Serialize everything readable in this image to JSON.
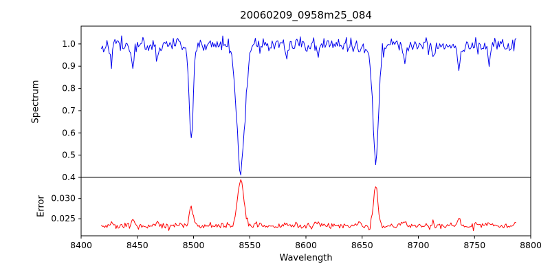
{
  "chart_data": {
    "type": "line",
    "title": "20060209_0958m25_084",
    "xlabel": "Wavelength",
    "x_range": [
      8400,
      8800
    ],
    "x_ticks": [
      8400,
      8450,
      8500,
      8550,
      8600,
      8650,
      8700,
      8750,
      8800
    ],
    "x_tick_labels": [
      "8400",
      "8450",
      "8500",
      "8550",
      "8600",
      "8650",
      "8700",
      "8750",
      "8800"
    ],
    "sampling": {
      "start": 8418,
      "end": 8787,
      "step": 1,
      "seed": 42
    },
    "panels": [
      {
        "name": "spectrum",
        "ylabel": "Spectrum",
        "ylim": [
          0.4,
          1.08
        ],
        "y_ticks": [
          0.4,
          0.5,
          0.6,
          0.7,
          0.8,
          0.9,
          1.0
        ],
        "y_tick_labels": [
          "0.4",
          "0.5",
          "0.6",
          "0.7",
          "0.8",
          "0.9",
          "1.0"
        ],
        "color": "#0000ee",
        "series": {
          "continuum": 0.995,
          "noise_sigma": 0.017,
          "absorption_lines": [
            {
              "center": 8498.0,
              "depth": 0.42,
              "sigma": 1.8
            },
            {
              "center": 8542.1,
              "depth": 0.57,
              "sigma": 3.6
            },
            {
              "center": 8662.1,
              "depth": 0.5,
              "sigma": 2.6
            }
          ],
          "weak_lines": [
            {
              "center": 8427,
              "depth": 0.05,
              "sigma": 1.0
            },
            {
              "center": 8446,
              "depth": 0.1,
              "sigma": 1.3
            },
            {
              "center": 8468,
              "depth": 0.06,
              "sigma": 1.0
            },
            {
              "center": 8583,
              "depth": 0.06,
              "sigma": 1.2
            },
            {
              "center": 8611,
              "depth": 0.05,
              "sigma": 1.0
            },
            {
              "center": 8648,
              "depth": 0.05,
              "sigma": 1.0
            },
            {
              "center": 8688,
              "depth": 0.09,
              "sigma": 1.2
            },
            {
              "center": 8713,
              "depth": 0.06,
              "sigma": 1.0
            },
            {
              "center": 8736,
              "depth": 0.1,
              "sigma": 1.2
            },
            {
              "center": 8763,
              "depth": 0.08,
              "sigma": 1.0
            }
          ]
        }
      },
      {
        "name": "error",
        "ylabel": "Error",
        "ylim": [
          0.0208,
          0.0352
        ],
        "y_ticks": [
          0.025,
          0.03
        ],
        "y_tick_labels": [
          "0.025",
          "0.030"
        ],
        "color": "#ff0000",
        "series": {
          "baseline": 0.0233,
          "noise_sigma": 0.0004,
          "weak_peak_factor": 0.015,
          "peaks": [
            {
              "center": 8498.0,
              "height": 0.0045,
              "sigma": 1.6
            },
            {
              "center": 8542.1,
              "height": 0.0112,
              "sigma": 2.8
            },
            {
              "center": 8662.1,
              "height": 0.01,
              "sigma": 2.0
            }
          ]
        }
      }
    ]
  }
}
